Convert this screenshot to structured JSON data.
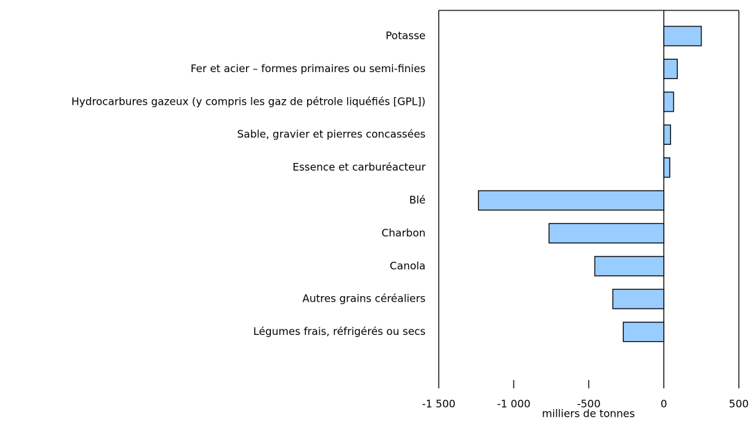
{
  "chart_data": {
    "type": "bar",
    "orientation": "horizontal",
    "categories": [
      "Potasse",
      "Fer et acier – formes primaires ou semi-finies",
      "Hydrocarbures gazeux (y compris les gaz de pétrole liquéfiés [GPL])",
      "Sable, gravier et pierres concassées",
      "Essence et carburéacteur",
      "Blé",
      "Charbon",
      "Canola",
      "Autres grains céréaliers",
      "Légumes frais, réfrigérés ou secs"
    ],
    "values": [
      250,
      90,
      65,
      45,
      40,
      -1235,
      -765,
      -460,
      -340,
      -270
    ],
    "color": "#99ccff",
    "xlim": [
      -1500,
      500
    ],
    "xticks": [
      {
        "value": -1500,
        "label": "-1 500"
      },
      {
        "value": -1000,
        "label": "-1 000"
      },
      -500,
      0,
      500
    ],
    "xlabel": "milliers de tonnes"
  }
}
